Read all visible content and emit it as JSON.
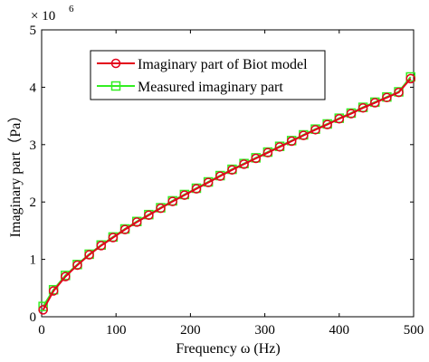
{
  "chart_data": {
    "type": "line",
    "xlabel": "Frequency  ω (Hz)",
    "ylabel": "Imaginary part（Pa）",
    "y_multiplier": "× 10",
    "y_exponent": "6",
    "xlim": [
      0,
      500
    ],
    "ylim": [
      0,
      5
    ],
    "xticks": [
      "0",
      "100",
      "200",
      "300",
      "400",
      "500"
    ],
    "yticks": [
      "0",
      "1",
      "2",
      "3",
      "4",
      "5"
    ],
    "grid": false,
    "legend_position": "top-center",
    "x": [
      2,
      16,
      32,
      48,
      64,
      80,
      96,
      112,
      128,
      144,
      160,
      176,
      192,
      208,
      224,
      240,
      256,
      272,
      288,
      304,
      320,
      336,
      352,
      368,
      384,
      400,
      416,
      432,
      448,
      464,
      480,
      496
    ],
    "series": [
      {
        "name": "Imaginary part of Biot model",
        "color": "#e3001b",
        "marker": "circle",
        "values": [
          0.12,
          0.45,
          0.7,
          0.9,
          1.08,
          1.24,
          1.38,
          1.52,
          1.65,
          1.77,
          1.89,
          2.01,
          2.12,
          2.23,
          2.34,
          2.45,
          2.56,
          2.66,
          2.76,
          2.86,
          2.96,
          3.06,
          3.16,
          3.26,
          3.35,
          3.45,
          3.54,
          3.64,
          3.73,
          3.82,
          3.91,
          4.15
        ]
      },
      {
        "name": "Measured imaginary part",
        "color": "#33ee22",
        "marker": "square",
        "values": [
          0.18,
          0.47,
          0.72,
          0.91,
          1.09,
          1.25,
          1.39,
          1.53,
          1.66,
          1.78,
          1.9,
          2.02,
          2.13,
          2.24,
          2.35,
          2.46,
          2.57,
          2.67,
          2.77,
          2.87,
          2.97,
          3.07,
          3.17,
          3.27,
          3.36,
          3.46,
          3.55,
          3.65,
          3.74,
          3.83,
          3.92,
          4.18
        ]
      }
    ]
  }
}
